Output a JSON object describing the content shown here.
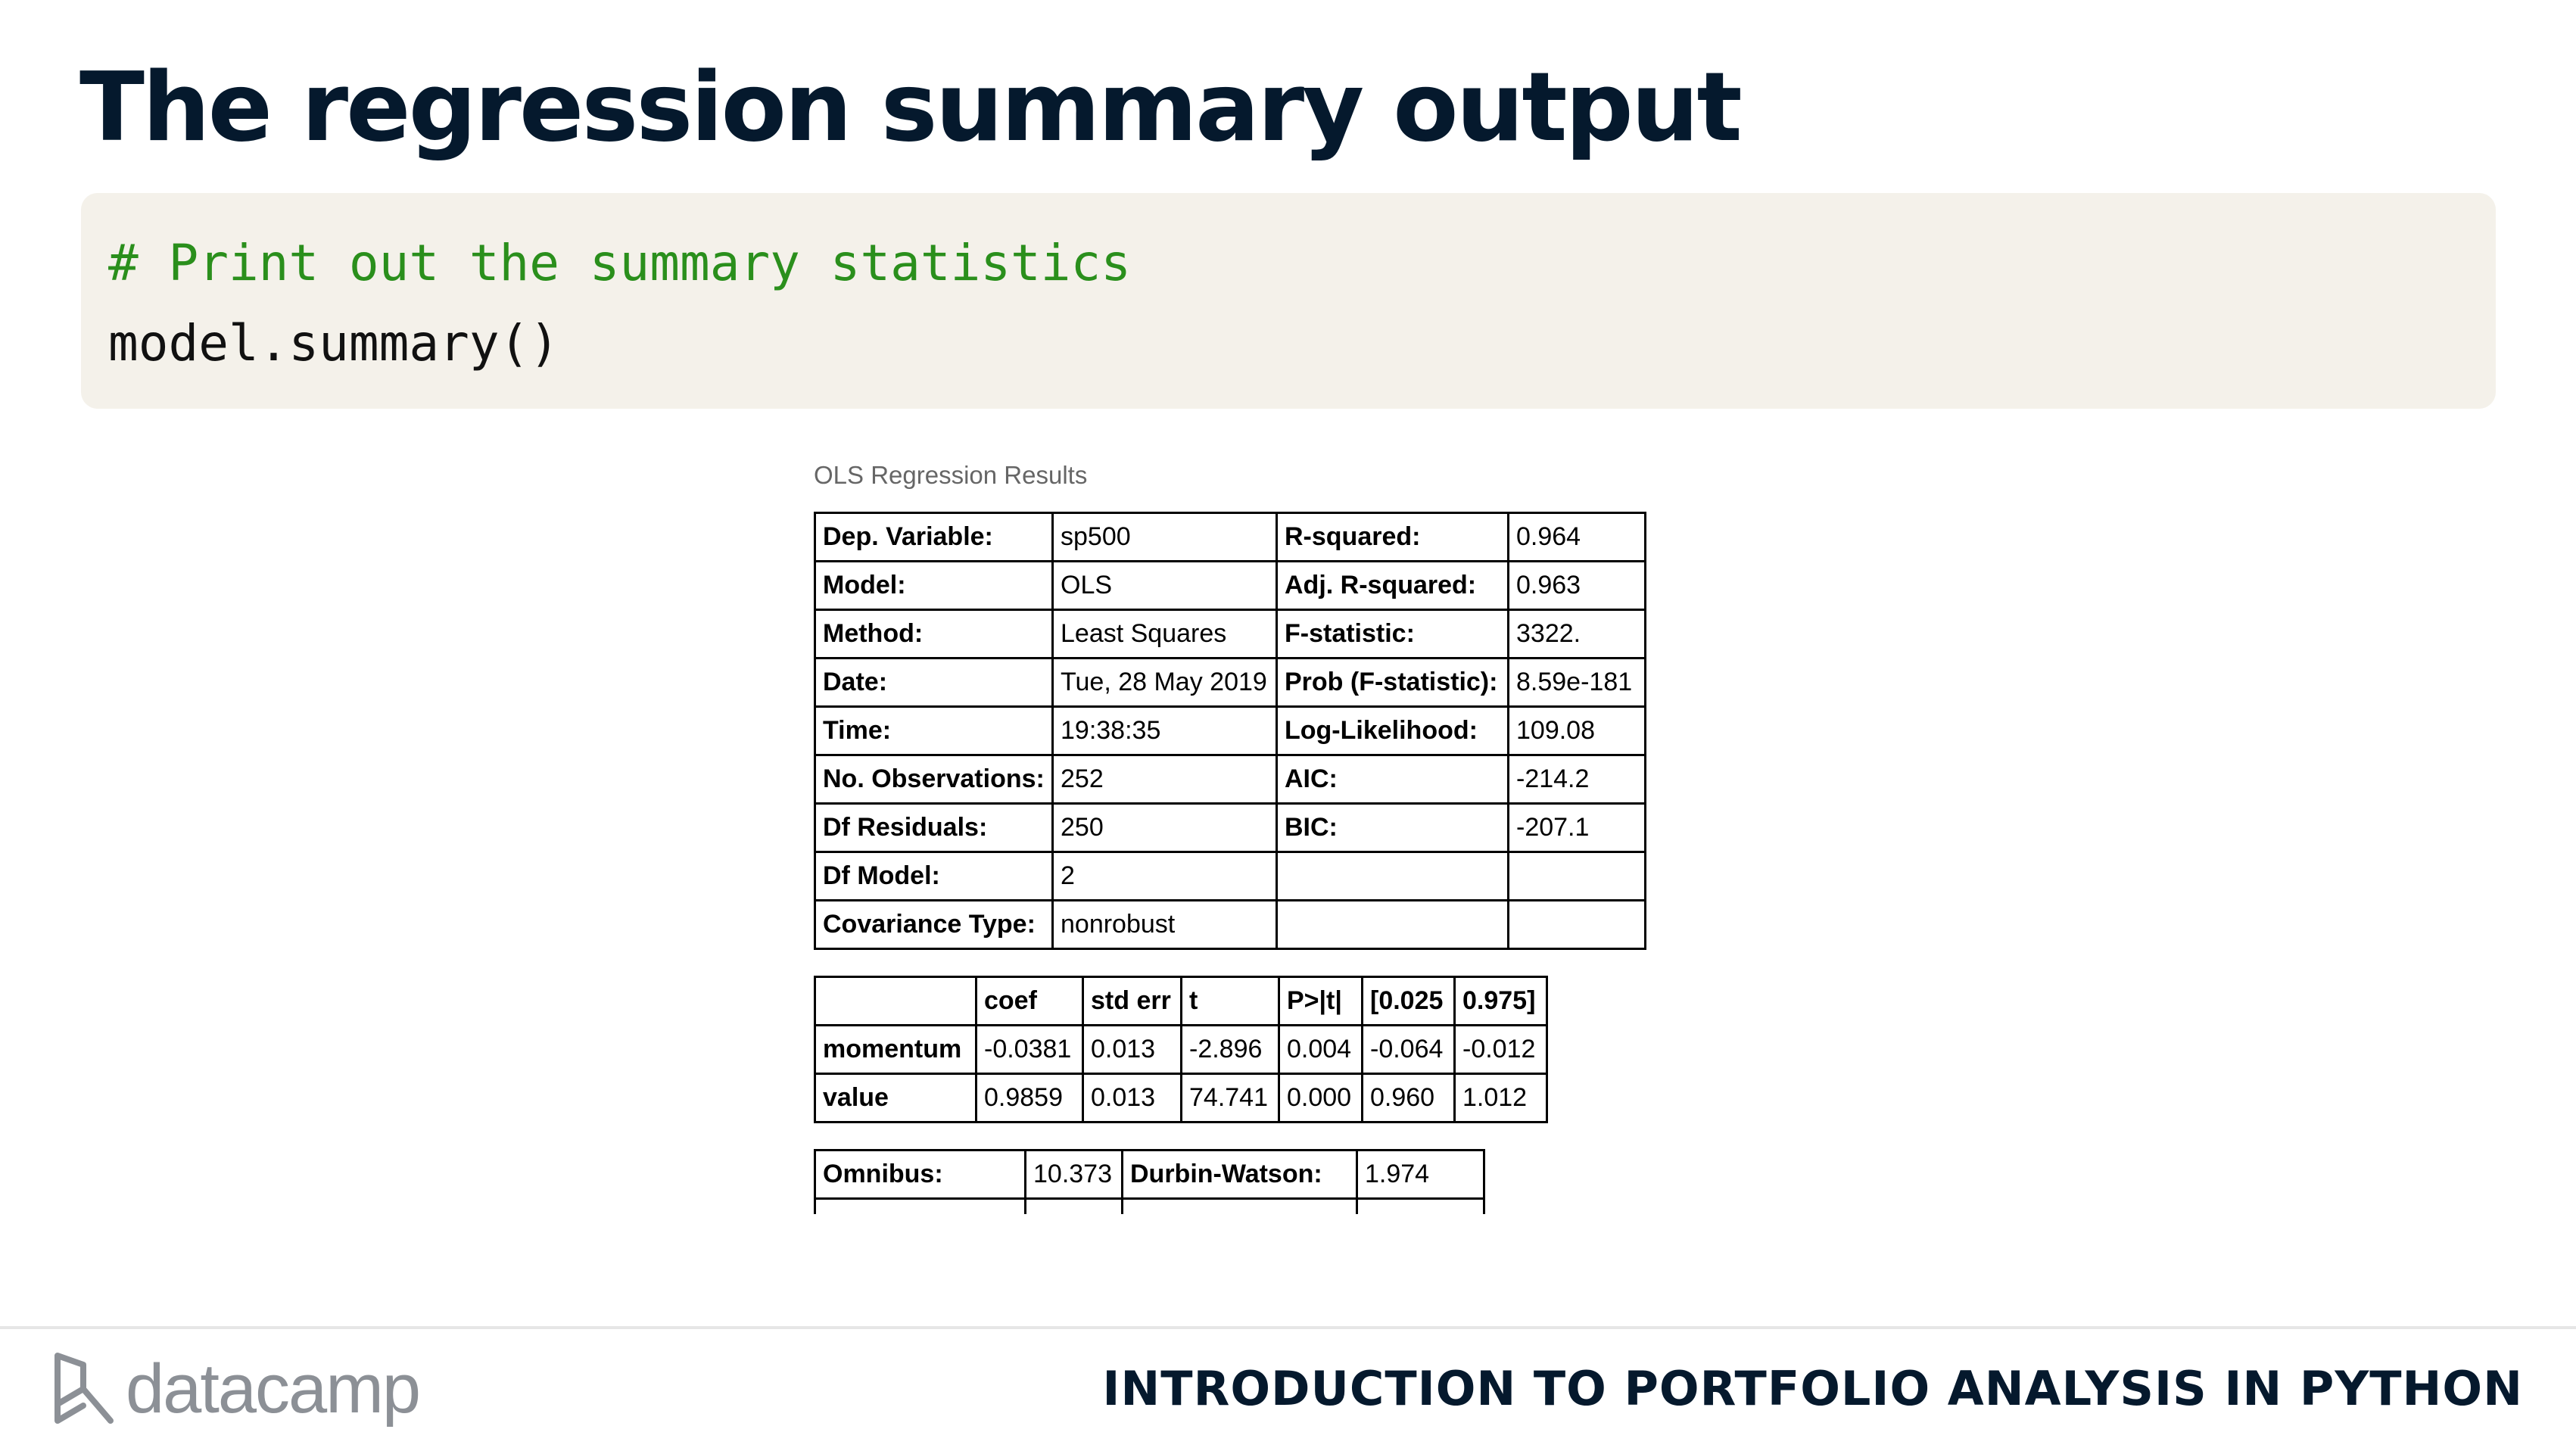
{
  "slide": {
    "title": "The regression summary output"
  },
  "code": {
    "comment": "# Print out the summary statistics",
    "statement": "model.summary()"
  },
  "results": {
    "caption": "OLS Regression Results",
    "top_table": [
      [
        "Dep. Variable:",
        "sp500",
        "R-squared:",
        "0.964"
      ],
      [
        "Model:",
        "OLS",
        "Adj. R-squared:",
        "0.963"
      ],
      [
        "Method:",
        "Least Squares",
        "F-statistic:",
        "3322."
      ],
      [
        "Date:",
        "Tue, 28 May 2019",
        "Prob (F-statistic):",
        "8.59e-181"
      ],
      [
        "Time:",
        "19:38:35",
        "Log-Likelihood:",
        "109.08"
      ],
      [
        "No. Observations:",
        "252",
        "AIC:",
        "-214.2"
      ],
      [
        "Df Residuals:",
        "250",
        "BIC:",
        "-207.1"
      ],
      [
        "Df Model:",
        "2",
        "",
        ""
      ],
      [
        "Covariance Type:",
        "nonrobust",
        "",
        ""
      ]
    ],
    "coef_table": {
      "headers": [
        "",
        "coef",
        "std err",
        "t",
        "P>|t|",
        "[0.025",
        "0.975]"
      ],
      "rows": [
        [
          "momentum",
          "-0.0381",
          "0.013",
          "-2.896",
          "0.004",
          "-0.064",
          "-0.012"
        ],
        [
          "value",
          "0.9859",
          "0.013",
          "74.741",
          "0.000",
          "0.960",
          "1.012"
        ]
      ]
    },
    "diag_table": [
      [
        "Omnibus:",
        "10.373",
        "Durbin-Watson:",
        "1.974"
      ],
      [
        "",
        "",
        "",
        ""
      ]
    ]
  },
  "footer": {
    "brand": "datacamp",
    "course": "INTRODUCTION TO PORTFOLIO ANALYSIS IN PYTHON"
  }
}
